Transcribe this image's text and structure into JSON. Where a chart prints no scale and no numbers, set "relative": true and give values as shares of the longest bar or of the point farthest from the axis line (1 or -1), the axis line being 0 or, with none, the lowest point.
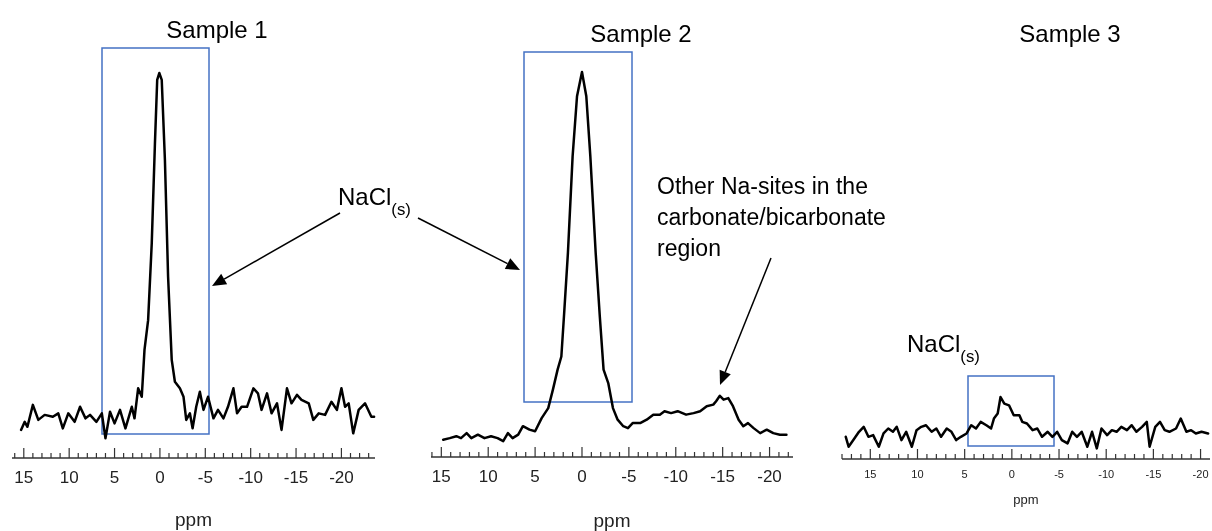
{
  "chart_data": [
    {
      "type": "line",
      "title": "Sample 1",
      "xlabel": "ppm",
      "relative": true,
      "color": "#000000",
      "xlim": [
        16.3,
        -23.7
      ],
      "xticks": [
        {
          "value": 16,
          "label": null
        },
        15,
        {
          "value": 14,
          "label": null
        },
        {
          "value": 13,
          "label": null
        },
        {
          "value": 12,
          "label": null
        },
        {
          "value": 11,
          "label": null
        },
        10,
        {
          "value": 9,
          "label": null
        },
        {
          "value": 8,
          "label": null
        },
        {
          "value": 7,
          "label": null
        },
        {
          "value": 6,
          "label": null
        },
        5,
        {
          "value": 4,
          "label": null
        },
        {
          "value": 3,
          "label": null
        },
        {
          "value": 2,
          "label": null
        },
        {
          "value": 1,
          "label": null
        },
        0,
        {
          "value": -1,
          "label": null
        },
        {
          "value": -2,
          "label": null
        },
        {
          "value": -3,
          "label": null
        },
        {
          "value": -4,
          "label": null
        },
        -5,
        {
          "value": -6,
          "label": null
        },
        {
          "value": -7,
          "label": null
        },
        {
          "value": -8,
          "label": null
        },
        {
          "value": -9,
          "label": null
        },
        -10,
        {
          "value": -11,
          "label": null
        },
        {
          "value": -12,
          "label": null
        },
        {
          "value": -13,
          "label": null
        },
        {
          "value": -14,
          "label": null
        },
        -15,
        {
          "value": -16,
          "label": null
        },
        {
          "value": -17,
          "label": null
        },
        {
          "value": -18,
          "label": null
        },
        {
          "value": -19,
          "label": null
        },
        -20,
        {
          "value": -21,
          "label": null
        },
        {
          "value": -22,
          "label": null
        },
        {
          "value": -23,
          "label": null
        }
      ],
      "x": [
        15.3,
        14.9,
        14.6,
        14.0,
        13.4,
        12.7,
        11.8,
        11.2,
        10.7,
        10.1,
        9.4,
        8.8,
        8.2,
        7.7,
        7.0,
        6.4,
        6.0,
        5.5,
        5.0,
        4.4,
        3.8,
        3.1,
        2.8,
        2.4,
        2.0,
        1.7,
        1.3,
        0.9,
        0.55,
        0.3,
        0.07,
        -0.2,
        -0.55,
        -0.9,
        -1.3,
        -1.65,
        -2.2,
        -2.6,
        -2.9,
        -3.3,
        -3.6,
        -4.0,
        -4.4,
        -4.8,
        -5.3,
        -5.9,
        -6.4,
        -7.0,
        -7.5,
        -8.1,
        -8.5,
        -9.0,
        -9.6,
        -10.3,
        -10.8,
        -11.2,
        -11.8,
        -12.3,
        -12.9,
        -13.4,
        -14.0,
        -14.5,
        -15.1,
        -15.6,
        -16.4,
        -16.9,
        -17.5,
        -18.2,
        -18.9,
        -19.5,
        -20.0,
        -20.4,
        -20.8,
        -21.3,
        -21.9,
        -22.6,
        -23.3,
        -23.6
      ],
      "values": [
        0.073,
        0.094,
        0.081,
        0.138,
        0.099,
        0.112,
        0.107,
        0.116,
        0.077,
        0.116,
        0.094,
        0.133,
        0.103,
        0.112,
        0.094,
        0.116,
        0.051,
        0.12,
        0.09,
        0.125,
        0.077,
        0.133,
        0.103,
        0.181,
        0.159,
        0.281,
        0.358,
        0.558,
        0.817,
        0.982,
        1.0,
        0.982,
        0.774,
        0.471,
        0.255,
        0.198,
        0.181,
        0.159,
        0.099,
        0.116,
        0.077,
        0.133,
        0.172,
        0.125,
        0.159,
        0.103,
        0.125,
        0.103,
        0.133,
        0.181,
        0.116,
        0.133,
        0.133,
        0.181,
        0.168,
        0.125,
        0.168,
        0.116,
        0.142,
        0.073,
        0.181,
        0.142,
        0.164,
        0.151,
        0.142,
        0.099,
        0.116,
        0.112,
        0.146,
        0.125,
        0.181,
        0.133,
        0.142,
        0.064,
        0.125,
        0.142,
        0.107,
        0.107
      ],
      "annotations": [
        "NaCl$_{(s)}$"
      ]
    },
    {
      "type": "line",
      "title": "Sample 2",
      "xlabel": "ppm",
      "relative": true,
      "color": "#000000",
      "xlim": [
        16.1,
        -22.5
      ],
      "xticks": [
        {
          "value": 16,
          "label": null
        },
        15,
        {
          "value": 14,
          "label": null
        },
        {
          "value": 13,
          "label": null
        },
        {
          "value": 12,
          "label": null
        },
        {
          "value": 11,
          "label": null
        },
        10,
        {
          "value": 9,
          "label": null
        },
        {
          "value": 8,
          "label": null
        },
        {
          "value": 7,
          "label": null
        },
        {
          "value": 6,
          "label": null
        },
        5,
        {
          "value": 4,
          "label": null
        },
        {
          "value": 3,
          "label": null
        },
        {
          "value": 2,
          "label": null
        },
        {
          "value": 1,
          "label": null
        },
        0,
        {
          "value": -1,
          "label": null
        },
        {
          "value": -2,
          "label": null
        },
        {
          "value": -3,
          "label": null
        },
        {
          "value": -4,
          "label": null
        },
        -5,
        {
          "value": -6,
          "label": null
        },
        {
          "value": -7,
          "label": null
        },
        {
          "value": -8,
          "label": null
        },
        {
          "value": -9,
          "label": null
        },
        -10,
        {
          "value": -11,
          "label": null
        },
        {
          "value": -12,
          "label": null
        },
        {
          "value": -13,
          "label": null
        },
        {
          "value": -14,
          "label": null
        },
        -15,
        {
          "value": -16,
          "label": null
        },
        {
          "value": -17,
          "label": null
        },
        {
          "value": -18,
          "label": null
        },
        {
          "value": -19,
          "label": null
        },
        -20,
        {
          "value": -21,
          "label": null
        },
        {
          "value": -22,
          "label": null
        }
      ],
      "x": [
        14.8,
        14.1,
        13.4,
        12.9,
        12.3,
        11.8,
        11.1,
        10.4,
        9.7,
        9.0,
        8.4,
        7.9,
        7.4,
        6.8,
        6.3,
        5.6,
        5.0,
        4.3,
        3.6,
        3.1,
        2.6,
        2.2,
        1.9,
        1.5,
        1.0,
        0.53,
        0,
        -0.46,
        -0.89,
        -1.46,
        -1.9,
        -2.3,
        -2.8,
        -3.3,
        -3.8,
        -4.4,
        -4.9,
        -5.4,
        -6.2,
        -6.9,
        -7.6,
        -8.3,
        -8.8,
        -9.5,
        -10.2,
        -11.1,
        -11.9,
        -12.6,
        -13.3,
        -14.0,
        -14.3,
        -14.7,
        -15.1,
        -15.6,
        -16.1,
        -16.7,
        -17.2,
        -17.7,
        -18.3,
        -19.0,
        -19.7,
        -20.4,
        -21.1,
        -21.8
      ],
      "values": [
        0.045,
        0.049,
        0.054,
        0.049,
        0.062,
        0.049,
        0.058,
        0.049,
        0.054,
        0.049,
        0.041,
        0.062,
        0.049,
        0.058,
        0.08,
        0.071,
        0.067,
        0.101,
        0.127,
        0.175,
        0.227,
        0.261,
        0.374,
        0.53,
        0.781,
        0.937,
        1.0,
        0.937,
        0.781,
        0.53,
        0.365,
        0.227,
        0.192,
        0.127,
        0.097,
        0.08,
        0.075,
        0.088,
        0.088,
        0.097,
        0.11,
        0.11,
        0.119,
        0.114,
        0.119,
        0.11,
        0.114,
        0.119,
        0.132,
        0.136,
        0.145,
        0.159,
        0.149,
        0.153,
        0.132,
        0.097,
        0.08,
        0.088,
        0.075,
        0.062,
        0.071,
        0.062,
        0.058,
        0.058
      ],
      "annotations": [
        "Other Na-sites in the carbonate/bicarbonate region"
      ]
    },
    {
      "type": "line",
      "title": "Sample 3",
      "xlabel": "ppm",
      "relative": true,
      "color": "#000000",
      "xlim": [
        18,
        -21
      ],
      "xticks": [
        {
          "value": 18,
          "label": null
        },
        {
          "value": 17,
          "label": null
        },
        {
          "value": 16,
          "label": null
        },
        15,
        {
          "value": 14,
          "label": null
        },
        {
          "value": 13,
          "label": null
        },
        {
          "value": 12,
          "label": null
        },
        {
          "value": 11,
          "label": null
        },
        10,
        {
          "value": 9,
          "label": null
        },
        {
          "value": 8,
          "label": null
        },
        {
          "value": 7,
          "label": null
        },
        {
          "value": 6,
          "label": null
        },
        5,
        {
          "value": 4,
          "label": null
        },
        {
          "value": 3,
          "label": null
        },
        {
          "value": 2,
          "label": null
        },
        {
          "value": 1,
          "label": null
        },
        0,
        {
          "value": -1,
          "label": null
        },
        {
          "value": -2,
          "label": null
        },
        {
          "value": -3,
          "label": null
        },
        {
          "value": -4,
          "label": null
        },
        -5,
        {
          "value": -6,
          "label": null
        },
        {
          "value": -7,
          "label": null
        },
        {
          "value": -8,
          "label": null
        },
        {
          "value": -9,
          "label": null
        },
        -10,
        {
          "value": -11,
          "label": null
        },
        {
          "value": -12,
          "label": null
        },
        {
          "value": -13,
          "label": null
        },
        {
          "value": -14,
          "label": null
        },
        -15,
        {
          "value": -16,
          "label": null
        },
        {
          "value": -17,
          "label": null
        },
        {
          "value": -18,
          "label": null
        },
        {
          "value": -19,
          "label": null
        },
        -20
      ],
      "x": [
        17.6,
        17.3,
        16.8,
        16.2,
        15.7,
        15.2,
        14.7,
        14.1,
        13.6,
        13.1,
        12.6,
        12.2,
        11.7,
        11.2,
        10.6,
        10.1,
        9.6,
        9.1,
        8.5,
        8.0,
        7.5,
        6.9,
        6.4,
        5.9,
        5.4,
        4.8,
        4.3,
        3.8,
        3.3,
        2.7,
        2.2,
        1.9,
        1.5,
        1.2,
        0.8,
        0.3,
        -0.2,
        -0.8,
        -1.1,
        -1.6,
        -2.2,
        -2.7,
        -3.2,
        -3.8,
        -4.3,
        -4.8,
        -5.3,
        -5.9,
        -6.4,
        -6.9,
        -7.4,
        -8.0,
        -8.5,
        -9.0,
        -9.5,
        -10.1,
        -10.6,
        -11.1,
        -11.6,
        -12.2,
        -12.7,
        -13.2,
        -13.8,
        -14.3,
        -14.6,
        -15.2,
        -15.7,
        -16.2,
        -16.7,
        -17.4,
        -17.9,
        -18.5,
        -19.0,
        -19.5,
        -20.1,
        -20.8
      ],
      "values": [
        0.358,
        0.198,
        0.305,
        0.439,
        0.519,
        0.358,
        0.385,
        0.198,
        0.412,
        0.492,
        0.439,
        0.519,
        0.305,
        0.439,
        0.198,
        0.465,
        0.519,
        0.545,
        0.439,
        0.492,
        0.358,
        0.492,
        0.439,
        0.305,
        0.358,
        0.412,
        0.545,
        0.492,
        0.599,
        0.545,
        0.492,
        0.652,
        0.733,
        1.0,
        0.893,
        0.866,
        0.706,
        0.706,
        0.599,
        0.572,
        0.465,
        0.492,
        0.358,
        0.439,
        0.358,
        0.439,
        0.305,
        0.251,
        0.439,
        0.358,
        0.439,
        0.198,
        0.439,
        0.171,
        0.492,
        0.385,
        0.465,
        0.439,
        0.519,
        0.465,
        0.545,
        0.439,
        0.519,
        0.599,
        0.198,
        0.519,
        0.599,
        0.465,
        0.439,
        0.492,
        0.652,
        0.439,
        0.465,
        0.412,
        0.439,
        0.412
      ],
      "annotations": [
        "NaCl$_{(s)}$"
      ]
    }
  ]
}
